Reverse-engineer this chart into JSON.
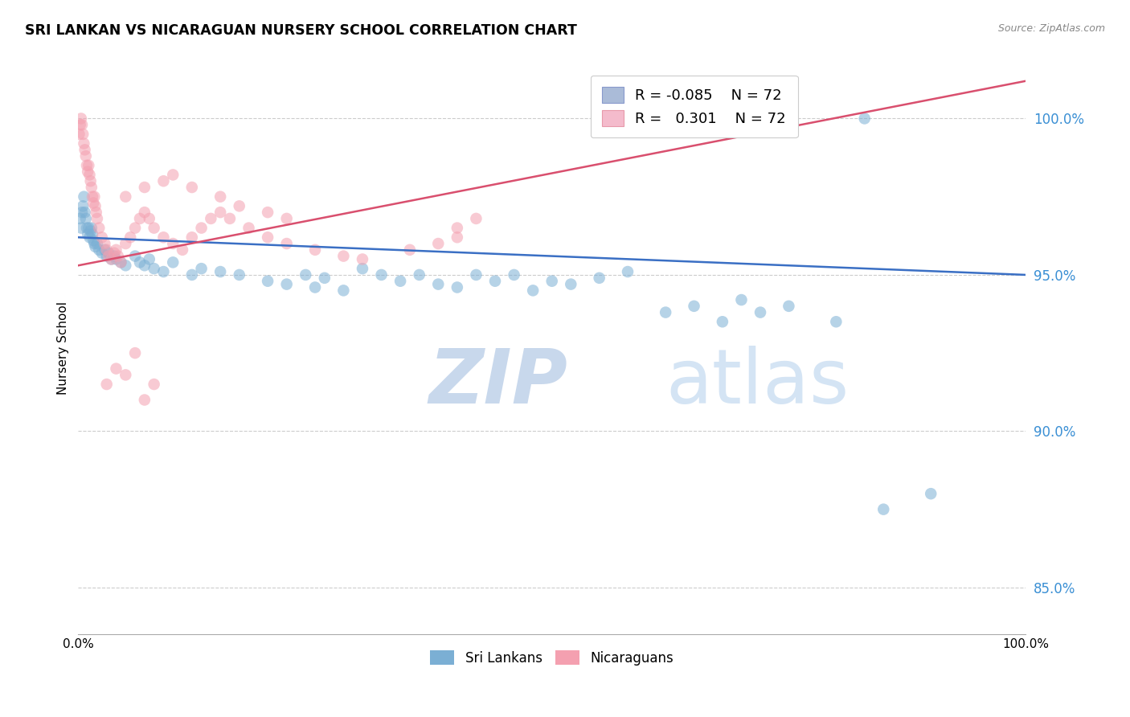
{
  "title": "SRI LANKAN VS NICARAGUAN NURSERY SCHOOL CORRELATION CHART",
  "source": "Source: ZipAtlas.com",
  "ylabel": "Nursery School",
  "sri_lankan_R": -0.085,
  "sri_lankan_N": 72,
  "nicaraguan_R": 0.301,
  "nicaraguan_N": 72,
  "blue_scatter_color": "#7BAFD4",
  "pink_scatter_color": "#F4A0B0",
  "blue_line_color": "#3A6FC4",
  "pink_line_color": "#D94F6E",
  "watermark_zip_color": "#D0DFF0",
  "watermark_atlas_color": "#C0D8F0",
  "sri_lankans_label": "Sri Lankans",
  "nicaraguans_label": "Nicaraguans",
  "y_ticks": [
    85.0,
    90.0,
    95.0,
    100.0
  ],
  "xlim": [
    0.0,
    1.0
  ],
  "ylim": [
    83.5,
    101.8
  ],
  "sri_lankans_x": [
    0.002,
    0.003,
    0.004,
    0.005,
    0.006,
    0.007,
    0.008,
    0.009,
    0.01,
    0.011,
    0.012,
    0.013,
    0.014,
    0.015,
    0.016,
    0.017,
    0.018,
    0.02,
    0.022,
    0.025,
    0.028,
    0.03,
    0.032,
    0.035,
    0.038,
    0.04,
    0.045,
    0.05,
    0.06,
    0.065,
    0.07,
    0.075,
    0.08,
    0.09,
    0.1,
    0.12,
    0.13,
    0.15,
    0.17,
    0.2,
    0.22,
    0.24,
    0.25,
    0.26,
    0.28,
    0.3,
    0.32,
    0.34,
    0.36,
    0.38,
    0.4,
    0.42,
    0.44,
    0.46,
    0.48,
    0.5,
    0.52,
    0.55,
    0.58,
    0.62,
    0.65,
    0.68,
    0.7,
    0.72,
    0.75,
    0.8,
    0.85,
    0.9,
    0.64,
    0.83
  ],
  "sri_lankans_y": [
    96.8,
    96.5,
    97.0,
    97.2,
    97.5,
    97.0,
    96.8,
    96.5,
    96.3,
    96.5,
    96.2,
    96.4,
    96.5,
    96.3,
    96.1,
    96.0,
    95.9,
    96.0,
    95.8,
    95.7,
    95.8,
    95.6,
    95.7,
    95.5,
    95.6,
    95.5,
    95.4,
    95.3,
    95.6,
    95.4,
    95.3,
    95.5,
    95.2,
    95.1,
    95.4,
    95.0,
    95.2,
    95.1,
    95.0,
    94.8,
    94.7,
    95.0,
    94.6,
    94.9,
    94.5,
    95.2,
    95.0,
    94.8,
    95.0,
    94.7,
    94.6,
    95.0,
    94.8,
    95.0,
    94.5,
    94.8,
    94.7,
    94.9,
    95.1,
    93.8,
    94.0,
    93.5,
    94.2,
    93.8,
    94.0,
    93.5,
    87.5,
    88.0,
    100.0,
    100.0
  ],
  "nicaraguans_x": [
    0.001,
    0.002,
    0.003,
    0.004,
    0.005,
    0.006,
    0.007,
    0.008,
    0.009,
    0.01,
    0.011,
    0.012,
    0.013,
    0.014,
    0.015,
    0.016,
    0.017,
    0.018,
    0.019,
    0.02,
    0.022,
    0.025,
    0.028,
    0.03,
    0.032,
    0.035,
    0.038,
    0.04,
    0.042,
    0.045,
    0.05,
    0.055,
    0.06,
    0.065,
    0.07,
    0.075,
    0.08,
    0.09,
    0.1,
    0.11,
    0.12,
    0.13,
    0.14,
    0.15,
    0.16,
    0.18,
    0.2,
    0.22,
    0.25,
    0.28,
    0.3,
    0.35,
    0.38,
    0.4,
    0.42,
    0.05,
    0.07,
    0.09,
    0.1,
    0.12,
    0.15,
    0.17,
    0.2,
    0.22,
    0.03,
    0.04,
    0.05,
    0.06,
    0.07,
    0.08,
    0.4
  ],
  "nicaraguans_y": [
    99.5,
    99.8,
    100.0,
    99.8,
    99.5,
    99.2,
    99.0,
    98.8,
    98.5,
    98.3,
    98.5,
    98.2,
    98.0,
    97.8,
    97.5,
    97.3,
    97.5,
    97.2,
    97.0,
    96.8,
    96.5,
    96.2,
    96.0,
    95.8,
    95.6,
    95.5,
    95.7,
    95.8,
    95.6,
    95.4,
    96.0,
    96.2,
    96.5,
    96.8,
    97.0,
    96.8,
    96.5,
    96.2,
    96.0,
    95.8,
    96.2,
    96.5,
    96.8,
    97.0,
    96.8,
    96.5,
    96.2,
    96.0,
    95.8,
    95.6,
    95.5,
    95.8,
    96.0,
    96.5,
    96.8,
    97.5,
    97.8,
    98.0,
    98.2,
    97.8,
    97.5,
    97.2,
    97.0,
    96.8,
    91.5,
    92.0,
    91.8,
    92.5,
    91.0,
    91.5,
    96.2
  ]
}
